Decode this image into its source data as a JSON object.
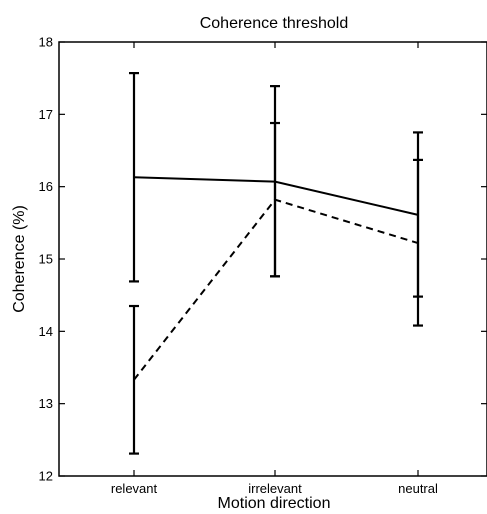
{
  "chart_data": {
    "type": "line",
    "title": "Coherence threshold",
    "xlabel": "Motion direction",
    "ylabel": "Coherence (%)",
    "categories": [
      "relevant",
      "irrelevant",
      "neutral"
    ],
    "ylim": [
      12,
      18
    ],
    "yticks": [
      12,
      13,
      14,
      15,
      16,
      17,
      18
    ],
    "grid": false,
    "series": [
      {
        "style": "solid",
        "values": [
          16.13,
          16.07,
          15.61
        ],
        "err_low": [
          14.69,
          14.76,
          14.08
        ],
        "err_high": [
          17.57,
          17.39,
          16.75
        ]
      },
      {
        "style": "dashed",
        "values": [
          13.33,
          15.82,
          15.22
        ],
        "err_low": [
          12.31,
          14.76,
          14.48
        ],
        "err_high": [
          14.35,
          16.88,
          16.37
        ]
      }
    ]
  }
}
